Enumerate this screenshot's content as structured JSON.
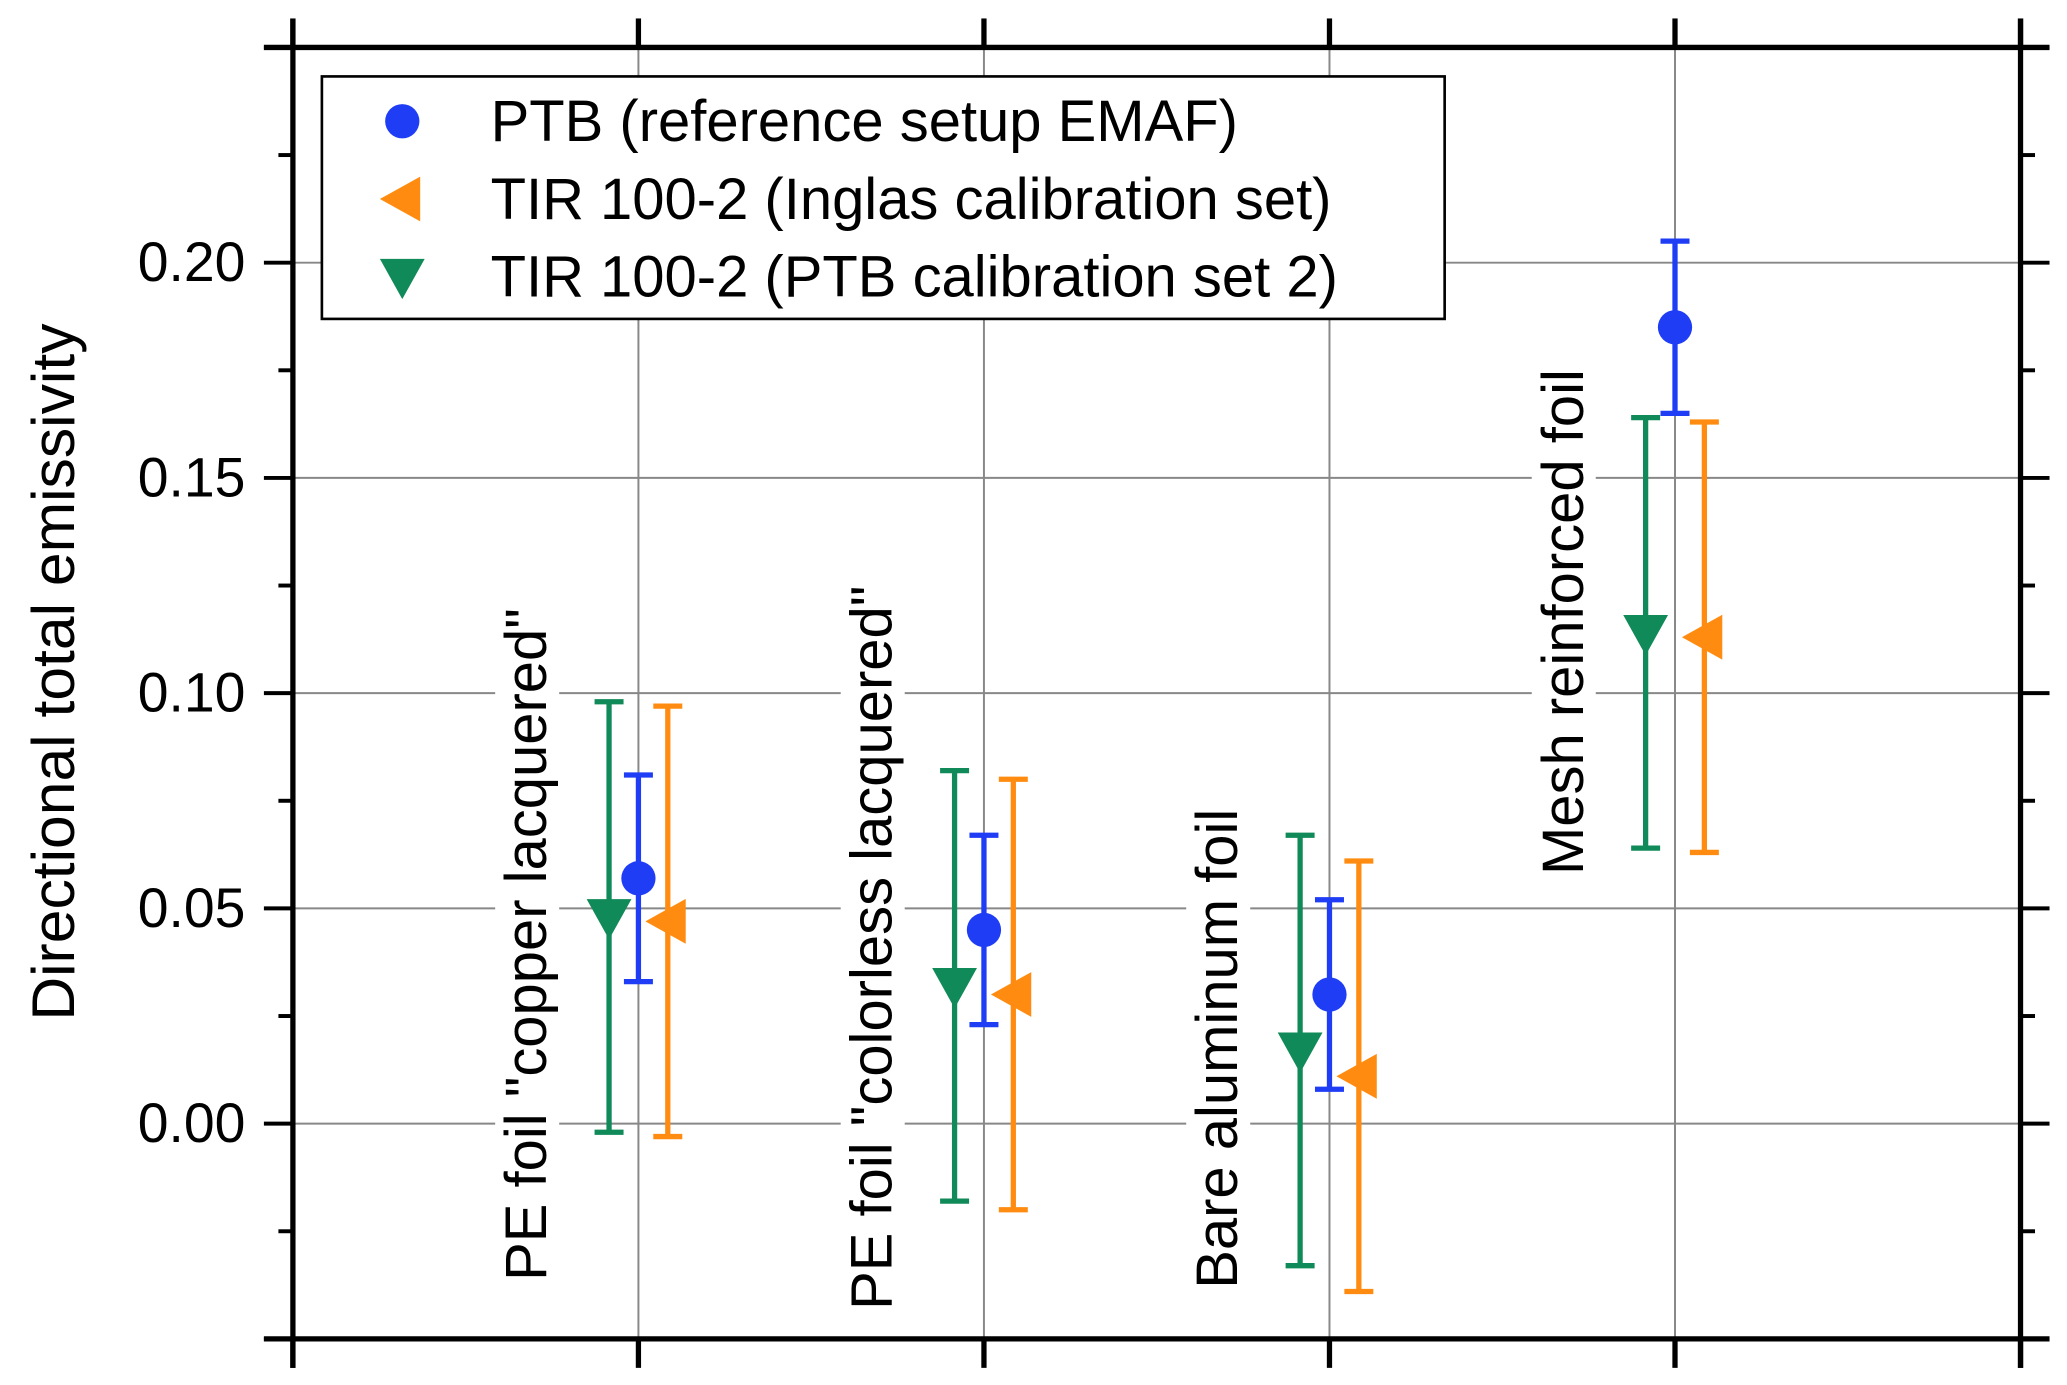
{
  "chart_data": {
    "type": "scatter",
    "title": "",
    "xlabel": "",
    "ylabel": "Directional total emissivity",
    "ylim": [
      -0.05,
      0.25
    ],
    "xlim": [
      0,
      5
    ],
    "yticks": [
      0.0,
      0.05,
      0.1,
      0.15,
      0.2
    ],
    "ytick_labels": [
      "0.00",
      "0.05",
      "0.10",
      "0.15",
      "0.20"
    ],
    "grid": true,
    "legend_position": "top-left",
    "categories": [
      "PE foil \"copper lacquered\"",
      "PE foil \"colorless lacquered\"",
      "Bare aluminum foil",
      "Mesh reinforced foil"
    ],
    "series": [
      {
        "name": "PTB (reference setup EMAF)",
        "marker": "circle",
        "color": "#1f3df5",
        "offset": 0,
        "values": [
          0.057,
          0.045,
          0.03,
          0.185
        ],
        "err_low": [
          0.033,
          0.023,
          0.008,
          0.165
        ],
        "err_high": [
          0.081,
          0.067,
          0.052,
          0.205
        ]
      },
      {
        "name": "TIR 100-2 (Inglas calibration set)",
        "marker": "triangle-left",
        "color": "#ff8c10",
        "offset": 0.085,
        "values": [
          0.047,
          0.03,
          0.011,
          0.113
        ],
        "err_low": [
          -0.003,
          -0.02,
          -0.039,
          0.063
        ],
        "err_high": [
          0.097,
          0.08,
          0.061,
          0.163
        ]
      },
      {
        "name": "TIR 100-2 (PTB calibration set 2)",
        "marker": "triangle-down",
        "color": "#108a58",
        "offset": -0.085,
        "values": [
          0.048,
          0.032,
          0.017,
          0.114
        ],
        "err_low": [
          -0.002,
          -0.018,
          -0.033,
          0.064
        ],
        "err_high": [
          0.098,
          0.082,
          0.067,
          0.164
        ]
      }
    ]
  }
}
